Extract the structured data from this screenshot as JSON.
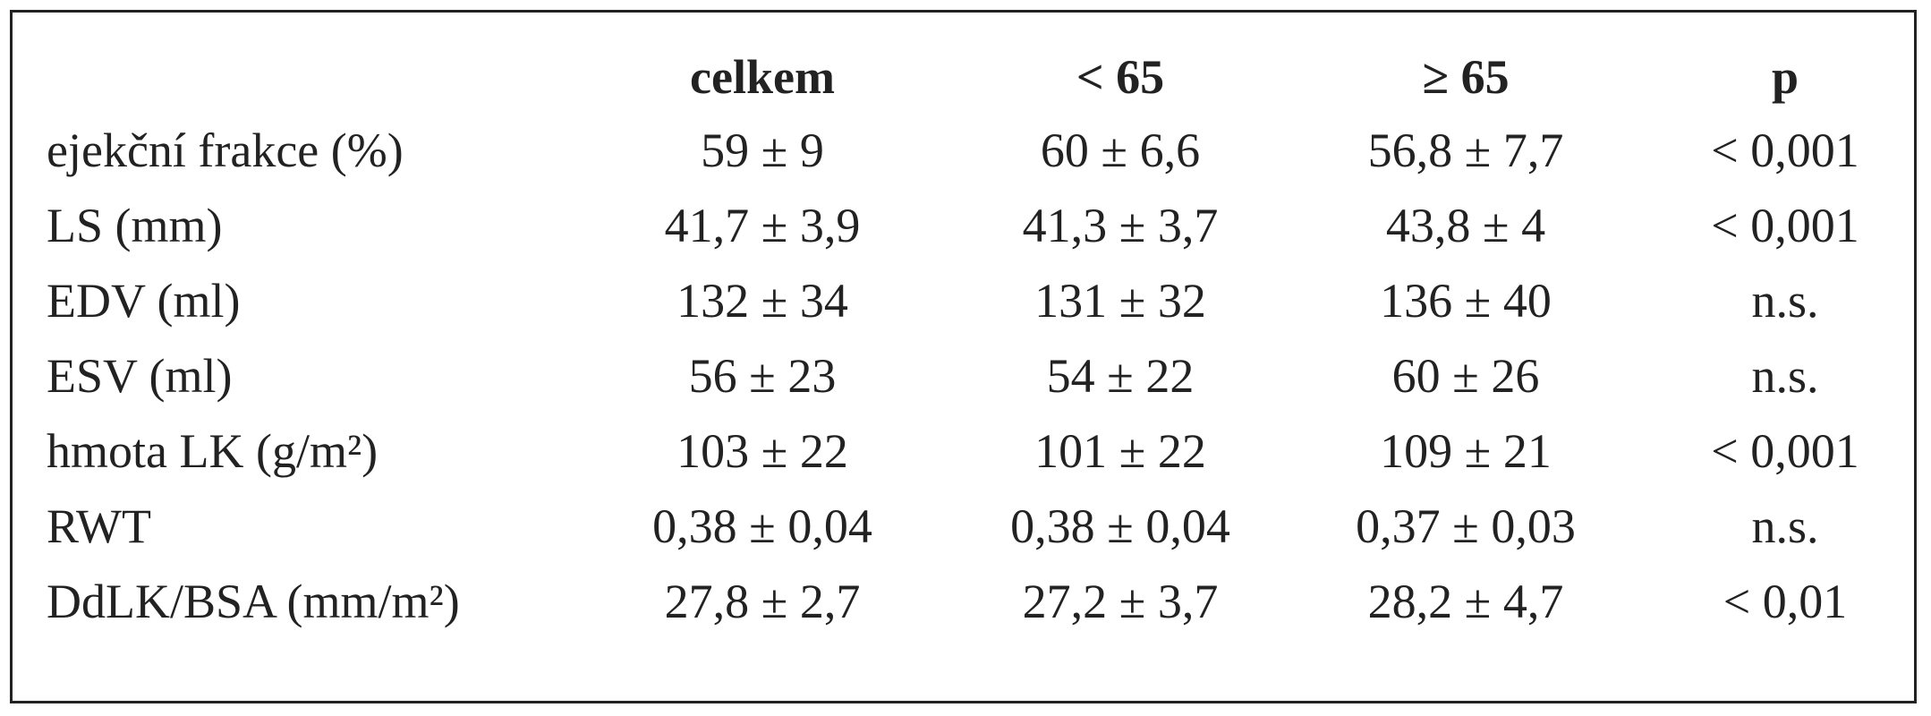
{
  "table": {
    "header": [
      "celkem",
      "< 65",
      "≥ 65",
      "p"
    ],
    "rows": [
      [
        "ejekční frakce (%)",
        "59 ± 9",
        "60 ± 6,6",
        "56,8 ± 7,7",
        "< 0,001"
      ],
      [
        "LS (mm)",
        "41,7 ± 3,9",
        "41,3 ± 3,7",
        "43,8 ± 4",
        "< 0,001"
      ],
      [
        "EDV (ml)",
        "132 ± 34",
        "131 ± 32",
        "136 ± 40",
        "n.s."
      ],
      [
        "ESV (ml)",
        "56 ± 23",
        "54 ± 22",
        "60 ± 26",
        "n.s."
      ],
      [
        "hmota LK (g/m²)",
        "103 ± 22",
        "101 ± 22",
        "109 ± 21",
        "< 0,001"
      ],
      [
        "RWT",
        "0,38 ± 0,04",
        "0,38 ± 0,04",
        "0,37 ± 0,03",
        "n.s."
      ],
      [
        "DdLK/BSA (mm/m²)",
        "27,8 ± 2,7",
        "27,2 ± 3,7",
        "28,2 ± 4,7",
        "< 0,01"
      ]
    ]
  }
}
